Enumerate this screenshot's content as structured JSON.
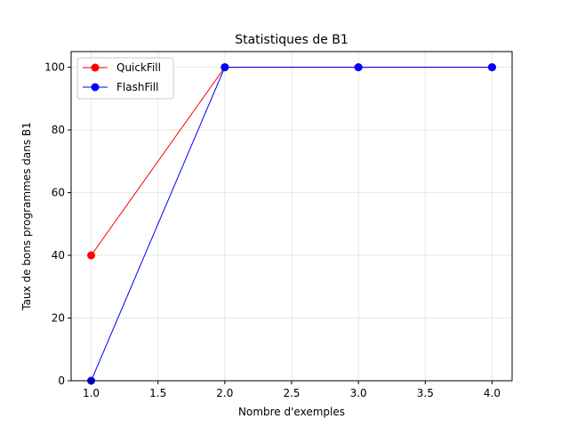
{
  "chart_data": {
    "type": "line",
    "title": "Statistiques de B1",
    "xlabel": "Nombre d'exemples",
    "ylabel": "Taux de bons programmes dans B1",
    "xlim": [
      0.85,
      4.15
    ],
    "ylim": [
      0,
      105
    ],
    "grid": true,
    "legend_position": "top-left",
    "xticks": [
      1.0,
      1.5,
      2.0,
      2.5,
      3.0,
      3.5,
      4.0
    ],
    "xtick_labels": [
      "1.0",
      "1.5",
      "2.0",
      "2.5",
      "3.0",
      "3.5",
      "4.0"
    ],
    "yticks": [
      0,
      20,
      40,
      60,
      80,
      100
    ],
    "ytick_labels": [
      "0",
      "20",
      "40",
      "60",
      "80",
      "100"
    ],
    "series": [
      {
        "name": "QuickFill",
        "color": "#ff0000",
        "x": [
          1,
          2,
          3,
          4
        ],
        "y": [
          40,
          100,
          100,
          100
        ]
      },
      {
        "name": "FlashFill",
        "color": "#0000ff",
        "x": [
          1,
          2,
          3,
          4
        ],
        "y": [
          0,
          100,
          100,
          100
        ]
      }
    ]
  }
}
